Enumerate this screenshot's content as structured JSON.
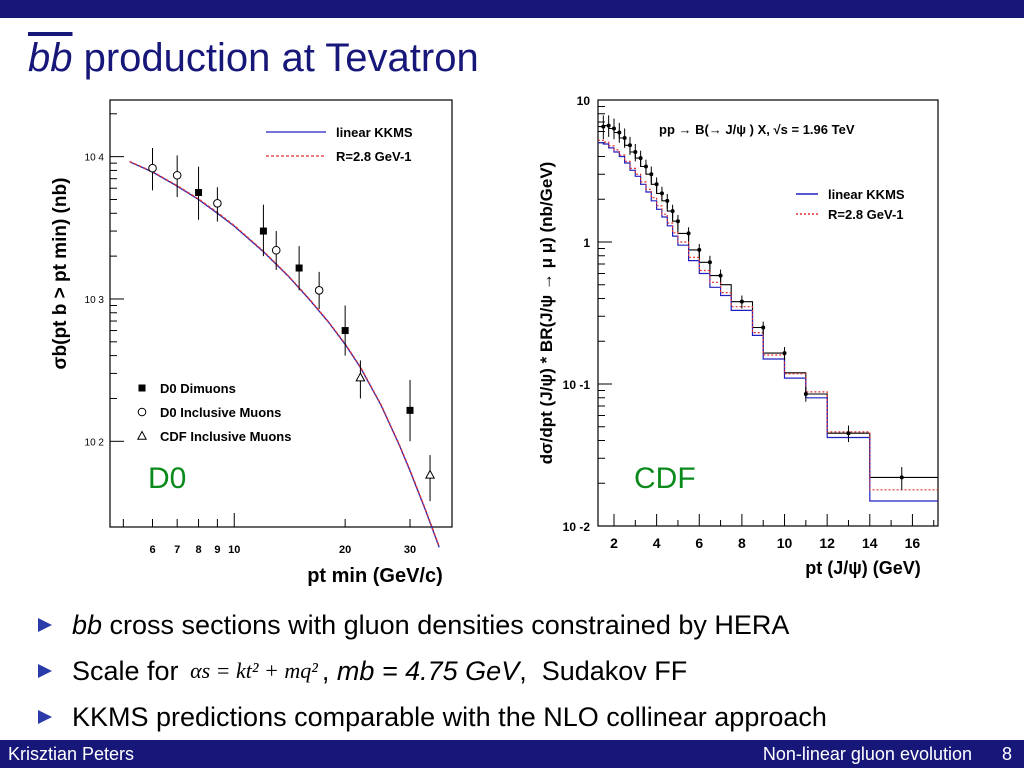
{
  "slide": {
    "title_italic": "bb",
    "title_rest": " production at Tevatron",
    "bullets": [
      {
        "italic": "bb",
        "text": " cross sections with gluon densities constrained by HERA"
      },
      {
        "text": "Scale for ",
        "formula": "αs = kt² + mq²",
        "after_formula": ", ",
        "mb_label": "mb = 4.75 GeV",
        "tail": ",  Sudakov FF"
      },
      {
        "text": "KKMS predictions comparable with the NLO collinear approach"
      }
    ],
    "footer": {
      "author": "Krisztian Peters",
      "talk": "Non-linear gluon evolution",
      "page": "8"
    }
  },
  "colors": {
    "bar": "#17177a",
    "title": "#17177a",
    "kkms": "#2020c0",
    "r28": "#e03030",
    "panel_label": "#0a8a1a",
    "bullet": "#2a3aa8"
  },
  "chart_data": [
    {
      "type": "scatter",
      "panel_label": "D0",
      "xlabel": "pt min (GeV/c)",
      "ylabel": "σb(pt b > pt min) (nb)",
      "xscale": "log",
      "yscale": "log",
      "xlim": [
        4.6,
        39
      ],
      "ylim": [
        25,
        25000
      ],
      "xticks": [
        6,
        7,
        8,
        9,
        10,
        20,
        30
      ],
      "yticks": [
        {
          "v": 100,
          "label": "10 2"
        },
        {
          "v": 1000,
          "label": "10 3"
        },
        {
          "v": 10000,
          "label": "10 4"
        }
      ],
      "legend_position": "top-right",
      "legend_lines": [
        {
          "name": "linear KKMS",
          "style": "solid",
          "color": "#2020c0"
        },
        {
          "name": "R=2.8 GeV-1",
          "style": "dashed",
          "color": "#e03030"
        }
      ],
      "legend_markers": [
        {
          "name": "D0 Dimuons",
          "marker": "filled-square"
        },
        {
          "name": "D0 Inclusive Muons",
          "marker": "open-circle"
        },
        {
          "name": "CDF Inclusive Muons",
          "marker": "open-triangle"
        }
      ],
      "series": [
        {
          "name": "D0 Dimuons",
          "marker": "filled-square",
          "points": [
            {
              "x": 8,
              "y": 5600,
              "lo": 3600,
              "hi": 8500
            },
            {
              "x": 12,
              "y": 3000,
              "lo": 2000,
              "hi": 4600
            },
            {
              "x": 15,
              "y": 1650,
              "lo": 1150,
              "hi": 2350
            },
            {
              "x": 20,
              "y": 600,
              "lo": 400,
              "hi": 900
            },
            {
              "x": 30,
              "y": 165,
              "lo": 100,
              "hi": 270
            }
          ]
        },
        {
          "name": "D0 Inclusive Muons",
          "marker": "open-circle",
          "points": [
            {
              "x": 6,
              "y": 8300,
              "lo": 5800,
              "hi": 11500
            },
            {
              "x": 7,
              "y": 7400,
              "lo": 5200,
              "hi": 10200
            },
            {
              "x": 9,
              "y": 4700,
              "lo": 3500,
              "hi": 6100
            },
            {
              "x": 13,
              "y": 2200,
              "lo": 1600,
              "hi": 3000
            },
            {
              "x": 17,
              "y": 1150,
              "lo": 850,
              "hi": 1550
            }
          ]
        },
        {
          "name": "CDF Inclusive Muons",
          "marker": "open-triangle",
          "points": [
            {
              "x": 22,
              "y": 280,
              "lo": 200,
              "hi": 370
            },
            {
              "x": 34,
              "y": 58,
              "lo": 38,
              "hi": 80
            }
          ]
        }
      ],
      "curves": [
        {
          "name": "linear KKMS",
          "color": "#2020c0",
          "style": "solid",
          "x": [
            5.2,
            6,
            7,
            8,
            9,
            10,
            12,
            14,
            16,
            18,
            20,
            22,
            25,
            28,
            30,
            33,
            36
          ],
          "y": [
            9200,
            7800,
            6200,
            5000,
            4000,
            3250,
            2150,
            1450,
            990,
            690,
            480,
            330,
            180,
            95,
            62,
            33,
            18
          ]
        },
        {
          "name": "R=2.8 GeV-1",
          "color": "#e03030",
          "style": "dashed",
          "x": [
            5.2,
            6,
            7,
            8,
            9,
            10,
            12,
            14,
            16,
            18,
            20,
            22,
            25,
            28,
            30,
            33,
            36
          ],
          "y": [
            9250,
            7850,
            6250,
            5050,
            4050,
            3280,
            2170,
            1460,
            1000,
            695,
            485,
            333,
            182,
            96,
            63,
            33.5,
            18.3
          ]
        }
      ]
    },
    {
      "type": "line",
      "panel_label": "CDF",
      "title": "pp → B(→ J/ψ ) X, √s = 1.96 TeV",
      "xlabel": "pt (J/ψ) (GeV)",
      "ylabel": "dσ/dpt (J/ψ) * BR(J/ψ → μ μ) (nb/GeV)",
      "yscale": "log",
      "xlim": [
        1.25,
        17.2
      ],
      "ylim": [
        0.01,
        10
      ],
      "xticks": [
        2,
        4,
        6,
        8,
        10,
        12,
        14,
        16
      ],
      "yticks": [
        {
          "v": 10,
          "label": "10"
        },
        {
          "v": 1,
          "label": "1"
        },
        {
          "v": 0.1,
          "label": "10 -1"
        },
        {
          "v": 0.01,
          "label": "10 -2"
        }
      ],
      "legend_position": "right",
      "legend_lines": [
        {
          "name": "linear KKMS",
          "style": "solid",
          "color": "#2020c0"
        },
        {
          "name": "R=2.8 GeV-1",
          "style": "dashed",
          "color": "#e03030"
        }
      ],
      "series": [
        {
          "name": "data",
          "points": [
            {
              "x": 1.5,
              "y": 6.5,
              "lo": 5.3,
              "hi": 7.8
            },
            {
              "x": 1.75,
              "y": 6.6,
              "lo": 5.5,
              "hi": 7.8
            },
            {
              "x": 2.0,
              "y": 6.3,
              "lo": 5.3,
              "hi": 7.4
            },
            {
              "x": 2.25,
              "y": 5.9,
              "lo": 5.0,
              "hi": 6.9
            },
            {
              "x": 2.5,
              "y": 5.4,
              "lo": 4.6,
              "hi": 6.3
            },
            {
              "x": 2.75,
              "y": 4.8,
              "lo": 4.1,
              "hi": 5.5
            },
            {
              "x": 3.0,
              "y": 4.3,
              "lo": 3.7,
              "hi": 4.9
            },
            {
              "x": 3.25,
              "y": 3.9,
              "lo": 3.4,
              "hi": 4.4
            },
            {
              "x": 3.5,
              "y": 3.4,
              "lo": 3.0,
              "hi": 3.8
            },
            {
              "x": 3.75,
              "y": 3.0,
              "lo": 2.6,
              "hi": 3.4
            },
            {
              "x": 4.0,
              "y": 2.55,
              "lo": 2.25,
              "hi": 2.85
            },
            {
              "x": 4.25,
              "y": 2.2,
              "lo": 1.95,
              "hi": 2.45
            },
            {
              "x": 4.5,
              "y": 1.95,
              "lo": 1.72,
              "hi": 2.18
            },
            {
              "x": 4.75,
              "y": 1.65,
              "lo": 1.47,
              "hi": 1.83
            },
            {
              "x": 5.0,
              "y": 1.4,
              "lo": 1.25,
              "hi": 1.55
            },
            {
              "x": 5.5,
              "y": 1.15,
              "lo": 1.03,
              "hi": 1.27
            },
            {
              "x": 6.0,
              "y": 0.88,
              "lo": 0.79,
              "hi": 0.97
            },
            {
              "x": 6.5,
              "y": 0.72,
              "lo": 0.64,
              "hi": 0.8
            },
            {
              "x": 7.0,
              "y": 0.58,
              "lo": 0.52,
              "hi": 0.64
            },
            {
              "x": 8.0,
              "y": 0.38,
              "lo": 0.34,
              "hi": 0.42
            },
            {
              "x": 9.0,
              "y": 0.25,
              "lo": 0.225,
              "hi": 0.275
            },
            {
              "x": 10.0,
              "y": 0.165,
              "lo": 0.148,
              "hi": 0.182
            },
            {
              "x": 11.0,
              "y": 0.085,
              "lo": 0.075,
              "hi": 0.095
            },
            {
              "x": 13.0,
              "y": 0.045,
              "lo": 0.039,
              "hi": 0.051
            },
            {
              "x": 15.5,
              "y": 0.022,
              "lo": 0.018,
              "hi": 0.026
            }
          ]
        }
      ],
      "histograms": [
        {
          "name": "data-bins",
          "color": "#000000",
          "style": "solid",
          "edges": [
            1.25,
            1.5,
            1.75,
            2.0,
            2.25,
            2.5,
            2.75,
            3.0,
            3.25,
            3.5,
            3.75,
            4.0,
            4.25,
            4.5,
            4.75,
            5.0,
            5.5,
            6.0,
            6.5,
            7.0,
            7.5,
            8.5,
            9.0,
            10.0,
            11.0,
            12.0,
            14.0,
            17.2
          ],
          "values": [
            6.5,
            6.6,
            6.3,
            5.9,
            5.4,
            4.8,
            4.3,
            3.9,
            3.4,
            3.0,
            2.55,
            2.2,
            1.95,
            1.65,
            1.4,
            1.15,
            0.88,
            0.72,
            0.58,
            0.5,
            0.38,
            0.25,
            0.165,
            0.12,
            0.085,
            0.045,
            0.022
          ]
        },
        {
          "name": "linear KKMS",
          "color": "#2020c0",
          "style": "solid",
          "edges": [
            1.25,
            1.5,
            1.75,
            2.0,
            2.25,
            2.5,
            2.75,
            3.0,
            3.25,
            3.5,
            3.75,
            4.0,
            4.25,
            4.5,
            4.75,
            5.0,
            5.5,
            6.0,
            6.5,
            7.0,
            7.5,
            8.5,
            9.0,
            10.0,
            11.0,
            12.0,
            14.0,
            17.2
          ],
          "values": [
            5.0,
            4.9,
            4.6,
            4.3,
            4.0,
            3.6,
            3.2,
            2.9,
            2.55,
            2.25,
            1.95,
            1.7,
            1.5,
            1.3,
            1.1,
            0.95,
            0.74,
            0.6,
            0.48,
            0.42,
            0.33,
            0.22,
            0.15,
            0.11,
            0.08,
            0.042,
            0.015
          ]
        },
        {
          "name": "R=2.8 GeV-1",
          "color": "#e03030",
          "style": "dashed",
          "edges": [
            1.25,
            1.5,
            1.75,
            2.0,
            2.25,
            2.5,
            2.75,
            3.0,
            3.25,
            3.5,
            3.75,
            4.0,
            4.25,
            4.5,
            4.75,
            5.0,
            5.5,
            6.0,
            6.5,
            7.0,
            7.5,
            8.5,
            9.0,
            10.0,
            11.0,
            12.0,
            14.0,
            17.2
          ],
          "values": [
            5.2,
            5.05,
            4.75,
            4.45,
            4.1,
            3.7,
            3.3,
            3.0,
            2.65,
            2.35,
            2.05,
            1.8,
            1.57,
            1.36,
            1.16,
            1.0,
            0.78,
            0.63,
            0.52,
            0.44,
            0.35,
            0.23,
            0.16,
            0.118,
            0.088,
            0.046,
            0.018
          ]
        }
      ]
    }
  ]
}
